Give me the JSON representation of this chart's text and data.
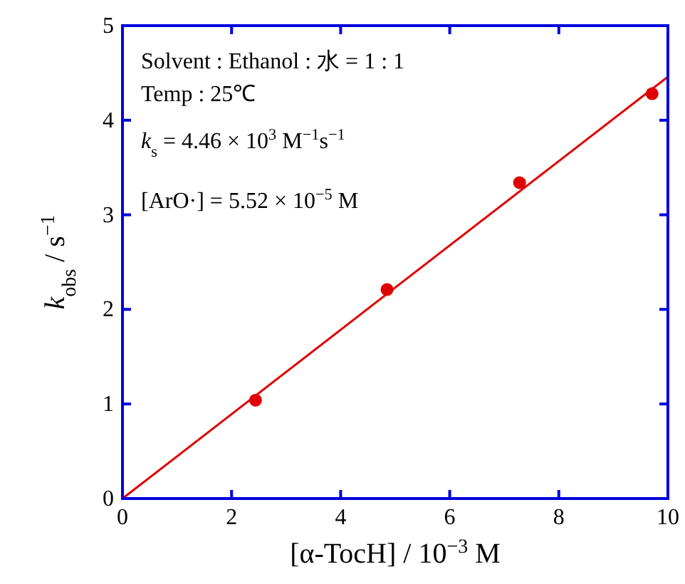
{
  "chart_data": {
    "type": "scatter",
    "xlabel": "[α-TocH] / 10$^{−3}$ M",
    "ylabel": "k$_{obs}$ / s$^{−1}$",
    "annotations": [
      "Solvent : Ethanol : 水 = 1 : 1",
      "Temp : 25℃",
      "k$_{s}$ = 4.46 × 10$^{3}$ M$^{−1}$s$^{−1}$",
      "[ArO·] = 5.52 × 10$^{−5}$ M"
    ],
    "xlim": [
      0,
      10
    ],
    "ylim": [
      0,
      5
    ],
    "xticks": [
      0,
      2,
      4,
      6,
      8,
      10
    ],
    "yticks": [
      0,
      1,
      2,
      3,
      4,
      5
    ],
    "series": [
      {
        "marker": "circle",
        "color": "#e00000",
        "x": [
          2.44,
          4.85,
          7.28,
          9.71
        ],
        "values": [
          1.04,
          2.21,
          3.34,
          4.28
        ]
      },
      {
        "type": "line",
        "color": "#e00000",
        "x": [
          0,
          10
        ],
        "values": [
          0,
          4.46
        ]
      }
    ]
  }
}
